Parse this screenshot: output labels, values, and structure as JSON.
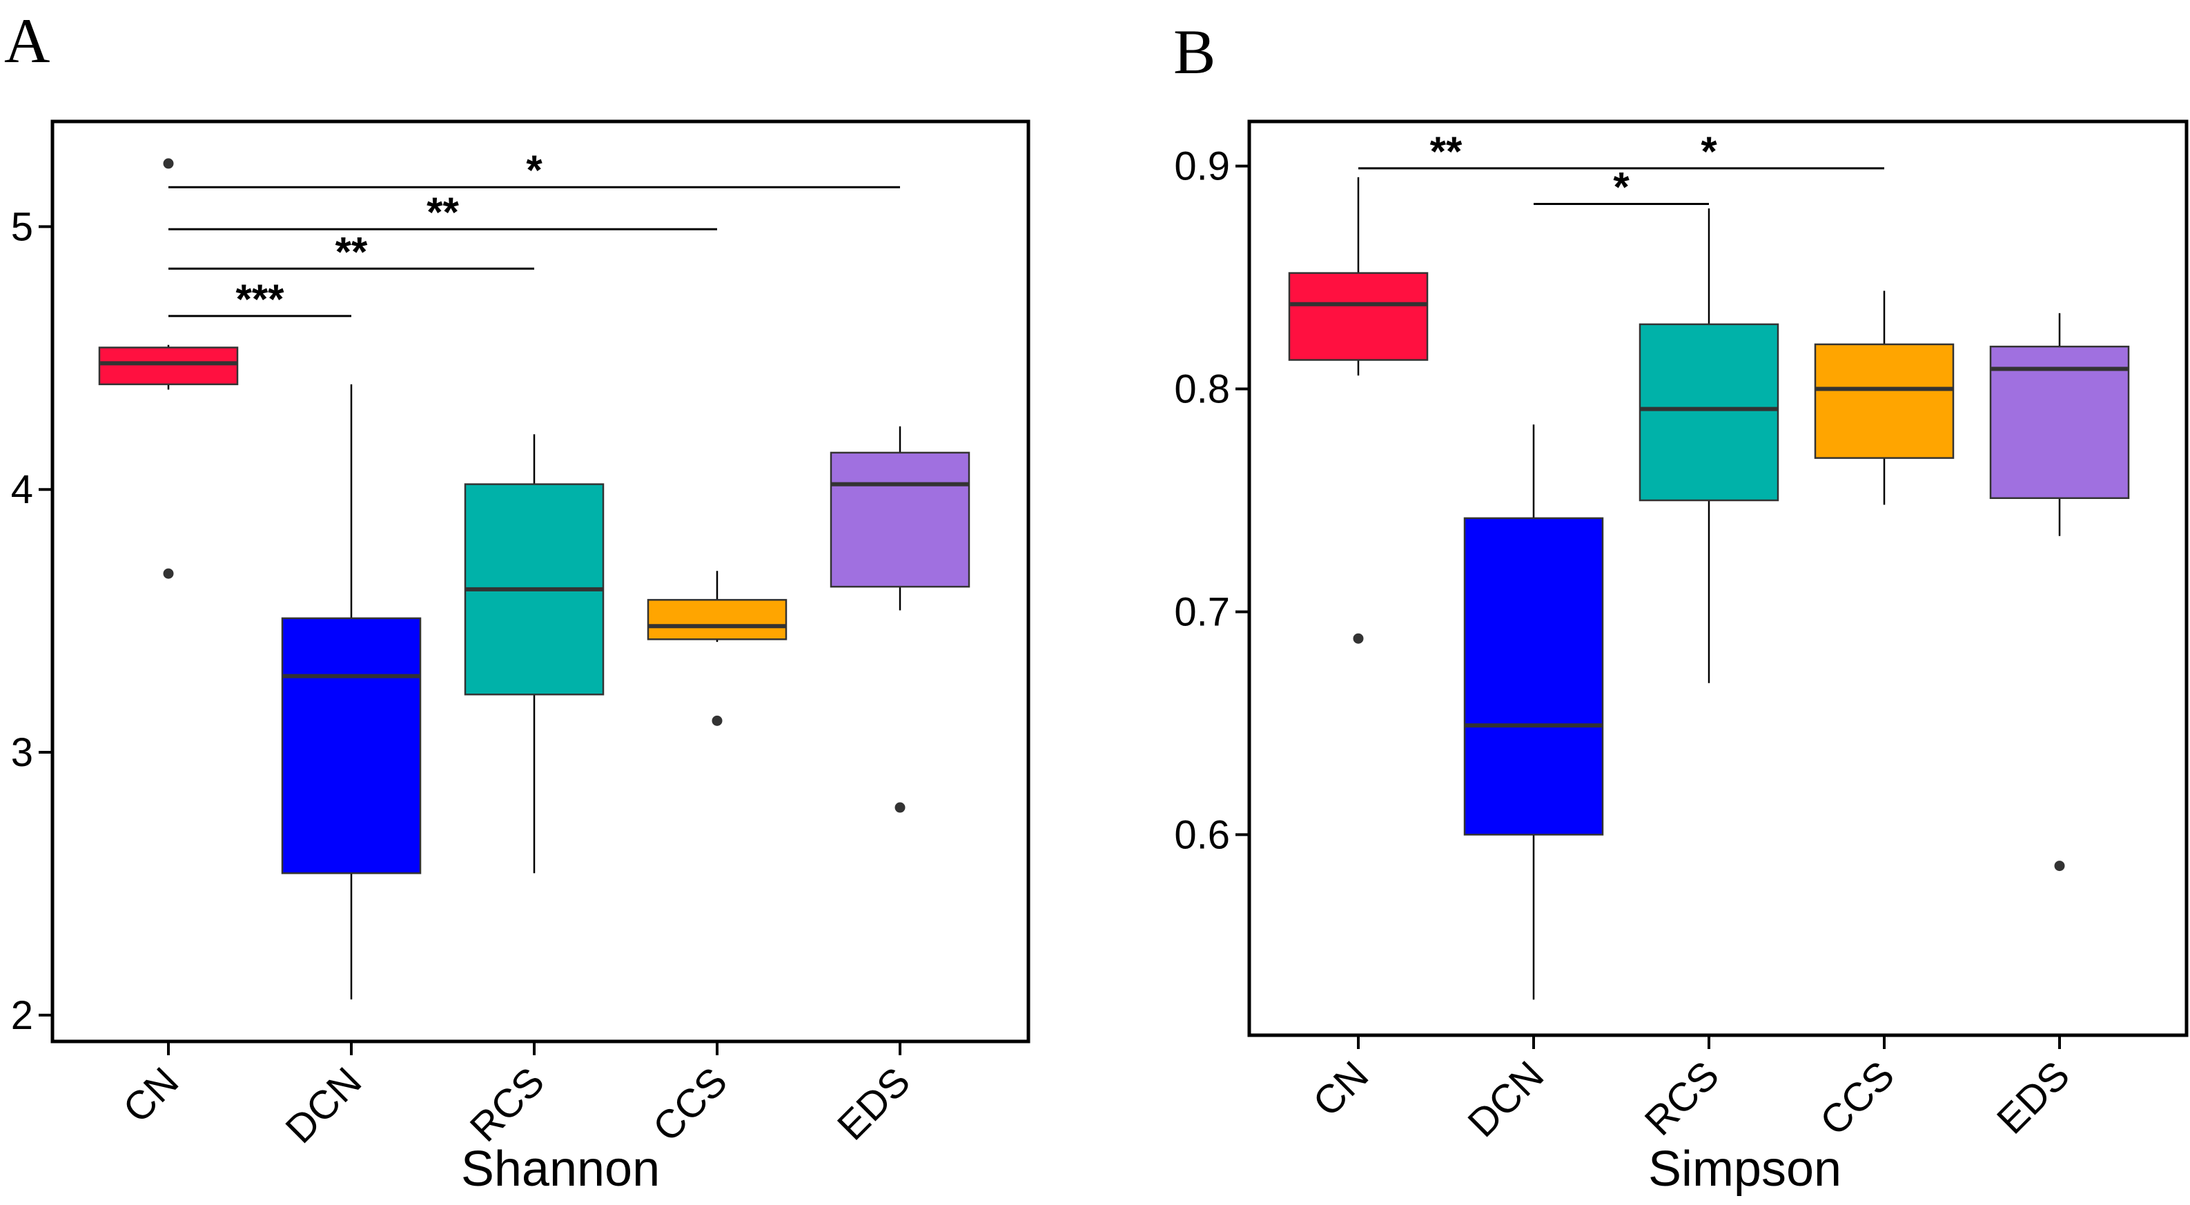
{
  "chart_data": [
    {
      "panel_label": "A",
      "type": "box",
      "title": "",
      "xlabel": "Shannon",
      "ylabel": "",
      "ylim": [
        1.9,
        5.4
      ],
      "yticks": [
        2,
        3,
        4,
        5
      ],
      "ytick_labels": [
        "2",
        "3",
        "4",
        "5"
      ],
      "categories": [
        "CN",
        "DCN",
        "RCS",
        "CCS",
        "EDS"
      ],
      "boxes": [
        {
          "category": "CN",
          "color": "#FF1040",
          "whisker_low": 4.38,
          "q1": 4.4,
          "median": 4.48,
          "q3": 4.54,
          "whisker_high": 4.55,
          "outliers": [
            5.24,
            3.68
          ]
        },
        {
          "category": "DCN",
          "color": "#0000FF",
          "whisker_low": 2.06,
          "q1": 2.54,
          "median": 3.29,
          "q3": 3.51,
          "whisker_high": 4.4,
          "outliers": []
        },
        {
          "category": "RCS",
          "color": "#00B2A9",
          "whisker_low": 2.54,
          "q1": 3.22,
          "median": 3.62,
          "q3": 4.02,
          "whisker_high": 4.21,
          "outliers": []
        },
        {
          "category": "CCS",
          "color": "#FFA500",
          "whisker_low": 3.42,
          "q1": 3.43,
          "median": 3.48,
          "q3": 3.58,
          "whisker_high": 3.69,
          "outliers": [
            3.12
          ]
        },
        {
          "category": "EDS",
          "color": "#A070E0",
          "whisker_low": 3.54,
          "q1": 3.63,
          "median": 4.02,
          "q3": 4.14,
          "whisker_high": 4.24,
          "outliers": [
            2.79
          ]
        }
      ],
      "significance": [
        {
          "from": "CN",
          "to": "EDS",
          "label": "*",
          "y": 5.15
        },
        {
          "from": "CN",
          "to": "CCS",
          "label": "**",
          "y": 4.99
        },
        {
          "from": "CN",
          "to": "RCS",
          "label": "**",
          "y": 4.84
        },
        {
          "from": "CN",
          "to": "DCN",
          "label": "***",
          "y": 4.66
        }
      ]
    },
    {
      "panel_label": "B",
      "type": "box",
      "title": "",
      "xlabel": "Simpson",
      "ylabel": "",
      "ylim": [
        0.51,
        0.92
      ],
      "yticks": [
        0.6,
        0.7,
        0.8,
        0.9
      ],
      "ytick_labels": [
        "0.6",
        "0.7",
        "0.8",
        "0.9"
      ],
      "categories": [
        "CN",
        "DCN",
        "RCS",
        "CCS",
        "EDS"
      ],
      "boxes": [
        {
          "category": "CN",
          "color": "#FF1040",
          "whisker_low": 0.806,
          "q1": 0.813,
          "median": 0.838,
          "q3": 0.852,
          "whisker_high": 0.895,
          "outliers": [
            0.688
          ]
        },
        {
          "category": "DCN",
          "color": "#0000FF",
          "whisker_low": 0.526,
          "q1": 0.6,
          "median": 0.649,
          "q3": 0.742,
          "whisker_high": 0.784,
          "outliers": []
        },
        {
          "category": "RCS",
          "color": "#00B2A9",
          "whisker_low": 0.668,
          "q1": 0.75,
          "median": 0.791,
          "q3": 0.829,
          "whisker_high": 0.881,
          "outliers": []
        },
        {
          "category": "CCS",
          "color": "#FFA500",
          "whisker_low": 0.748,
          "q1": 0.769,
          "median": 0.8,
          "q3": 0.82,
          "whisker_high": 0.844,
          "outliers": []
        },
        {
          "category": "EDS",
          "color": "#A070E0",
          "whisker_low": 0.734,
          "q1": 0.751,
          "median": 0.809,
          "q3": 0.819,
          "whisker_high": 0.834,
          "outliers": [
            0.586
          ]
        }
      ],
      "significance": [
        {
          "from": "CN",
          "to": "DCN",
          "label": "**",
          "y": 0.899
        },
        {
          "from": "DCN",
          "to": "CCS",
          "label": "*",
          "y": 0.899
        },
        {
          "from": "DCN",
          "to": "RCS",
          "label": "*",
          "y": 0.883
        }
      ]
    }
  ]
}
